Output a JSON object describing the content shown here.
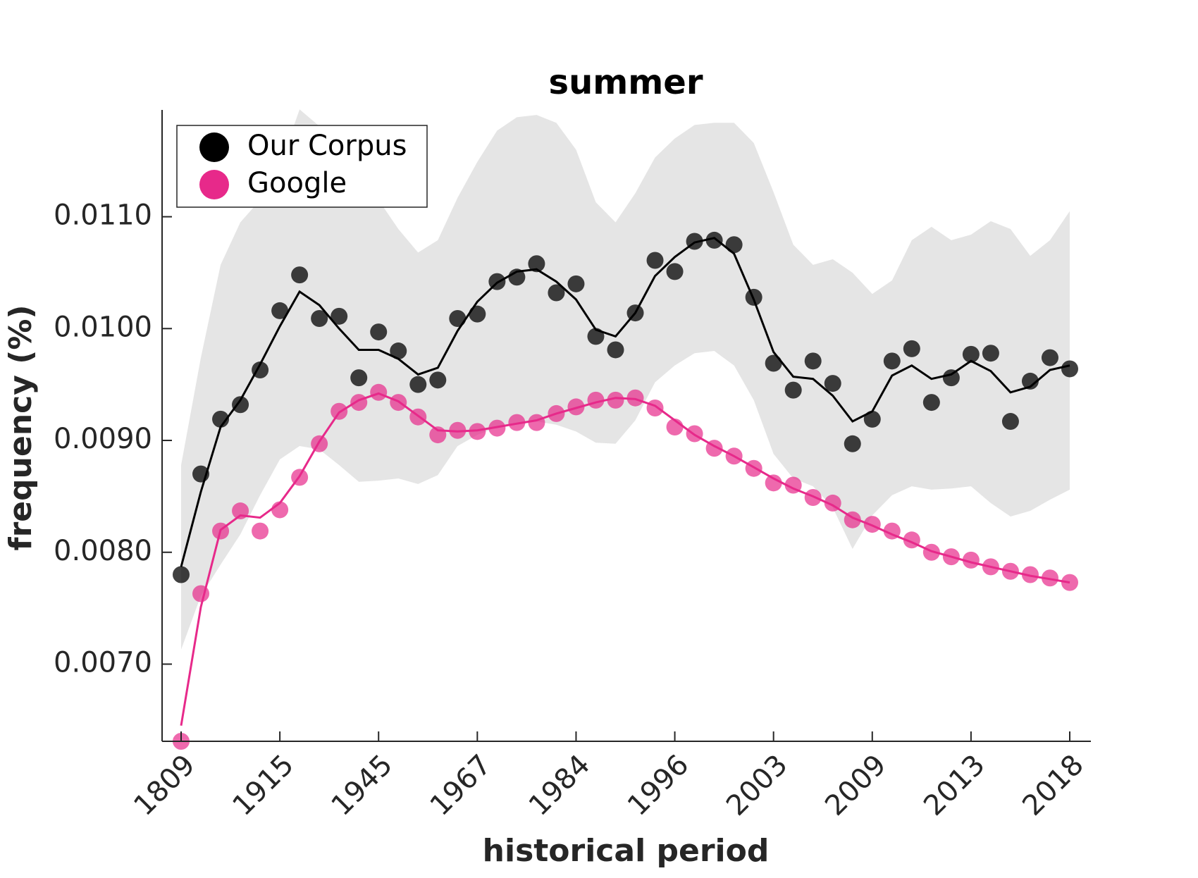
{
  "chart_data": {
    "type": "line",
    "title": "summer",
    "xlabel": "historical period",
    "ylabel": "frequency (%)",
    "categories": [
      "1809",
      null,
      null,
      null,
      null,
      "1915",
      null,
      null,
      null,
      null,
      "1945",
      null,
      null,
      null,
      null,
      "1967",
      null,
      null,
      null,
      null,
      "1984",
      null,
      null,
      null,
      null,
      "1996",
      null,
      null,
      null,
      null,
      "2003",
      null,
      null,
      null,
      null,
      "2009",
      null,
      null,
      null,
      null,
      "2013",
      null,
      null,
      null,
      null,
      "2018"
    ],
    "ylim": [
      0.00631,
      0.011955
    ],
    "yticks": [
      {
        "value": 0.007,
        "label": "0.0070"
      },
      {
        "value": 0.008,
        "label": "0.0080"
      },
      {
        "value": 0.009,
        "label": "0.0090"
      },
      {
        "value": 0.01,
        "label": "0.0100"
      },
      {
        "value": 0.011,
        "label": "0.0110"
      }
    ],
    "legend": "upper left",
    "band": {
      "color": "#e5e5e5",
      "upper": [
        0.00878,
        0.00974,
        0.01057,
        0.01095,
        0.01115,
        0.01146,
        0.01196,
        0.01181,
        0.01153,
        0.01126,
        0.01115,
        0.01089,
        0.01068,
        0.01079,
        0.01117,
        0.01149,
        0.01177,
        0.01189,
        0.01191,
        0.01184,
        0.0116,
        0.01113,
        0.01095,
        0.01121,
        0.01153,
        0.0117,
        0.01182,
        0.01184,
        0.01184,
        0.01166,
        0.01122,
        0.01075,
        0.01057,
        0.01062,
        0.0105,
        0.01031,
        0.01043,
        0.01079,
        0.01091,
        0.01079,
        0.01084,
        0.01096,
        0.01089,
        0.01065,
        0.01079,
        0.01105
      ],
      "lower": [
        0.00713,
        0.00761,
        0.00789,
        0.00816,
        0.00851,
        0.00883,
        0.00895,
        0.00892,
        0.00878,
        0.00863,
        0.00864,
        0.00866,
        0.00861,
        0.00869,
        0.00895,
        0.00905,
        0.00912,
        0.00914,
        0.00917,
        0.00914,
        0.00908,
        0.00898,
        0.00897,
        0.00918,
        0.00952,
        0.00967,
        0.00978,
        0.0098,
        0.00967,
        0.00936,
        0.00888,
        0.00866,
        0.00859,
        0.0084,
        0.00803,
        0.00833,
        0.00851,
        0.00859,
        0.00856,
        0.00857,
        0.00859,
        0.00844,
        0.00832,
        0.00837,
        0.00847,
        0.00856
      ]
    },
    "series": [
      {
        "name": "Our Corpus",
        "color": "#000000",
        "values": [
          0.0078,
          0.0087,
          0.00919,
          0.00932,
          0.00963,
          0.01016,
          0.01048,
          0.01009,
          0.01011,
          0.00956,
          0.00997,
          0.0098,
          0.0095,
          0.00954,
          0.01009,
          0.01013,
          0.01042,
          0.01046,
          0.01058,
          0.01032,
          0.0104,
          0.00993,
          0.00981,
          0.01014,
          0.01061,
          0.01051,
          0.01078,
          0.01079,
          0.01075,
          0.01028,
          0.00969,
          0.00945,
          0.00971,
          0.00951,
          0.00897,
          0.00919,
          0.00971,
          0.00982,
          0.00934,
          0.00956,
          0.00977,
          0.00978,
          0.00917,
          0.00953,
          0.00974,
          0.00964
        ],
        "smoothed": [
          0.00787,
          0.00854,
          0.00912,
          0.00936,
          0.00968,
          0.01002,
          0.01033,
          0.01021,
          0.01,
          0.00981,
          0.00981,
          0.00973,
          0.00959,
          0.00965,
          0.00998,
          0.01024,
          0.01041,
          0.01051,
          0.01053,
          0.01042,
          0.01026,
          0.00999,
          0.00993,
          0.01014,
          0.01047,
          0.01064,
          0.01077,
          0.01081,
          0.01067,
          0.01026,
          0.00979,
          0.00957,
          0.00955,
          0.0094,
          0.00917,
          0.00926,
          0.00958,
          0.00967,
          0.00955,
          0.00959,
          0.00971,
          0.00962,
          0.00943,
          0.00948,
          0.00963,
          0.00967
        ]
      },
      {
        "name": "Google",
        "color": "#e7298a",
        "values": [
          0.00631,
          0.00763,
          0.00819,
          0.00837,
          0.00819,
          0.00838,
          0.00867,
          0.00897,
          0.00926,
          0.00934,
          0.00943,
          0.00934,
          0.00921,
          0.00905,
          0.00909,
          0.00908,
          0.00911,
          0.00916,
          0.00916,
          0.00924,
          0.0093,
          0.00936,
          0.00936,
          0.00938,
          0.00929,
          0.00912,
          0.00906,
          0.00893,
          0.00886,
          0.00875,
          0.00862,
          0.0086,
          0.00849,
          0.00844,
          0.00829,
          0.00825,
          0.00819,
          0.00811,
          0.008,
          0.00796,
          0.00793,
          0.00787,
          0.00783,
          0.0078,
          0.00777,
          0.00773
        ],
        "smoothed": [
          0.00645,
          0.00751,
          0.0082,
          0.00833,
          0.00831,
          0.00844,
          0.00868,
          0.00899,
          0.00925,
          0.00936,
          0.00942,
          0.00935,
          0.00922,
          0.00909,
          0.00908,
          0.00909,
          0.00912,
          0.00915,
          0.00918,
          0.00924,
          0.00929,
          0.00934,
          0.00938,
          0.00937,
          0.00931,
          0.00918,
          0.00905,
          0.00895,
          0.00886,
          0.00876,
          0.00866,
          0.00857,
          0.0085,
          0.00842,
          0.00831,
          0.00824,
          0.00816,
          0.00809,
          0.00801,
          0.00796,
          0.00791,
          0.00787,
          0.00783,
          0.00779,
          0.00776,
          0.00773
        ]
      }
    ]
  }
}
